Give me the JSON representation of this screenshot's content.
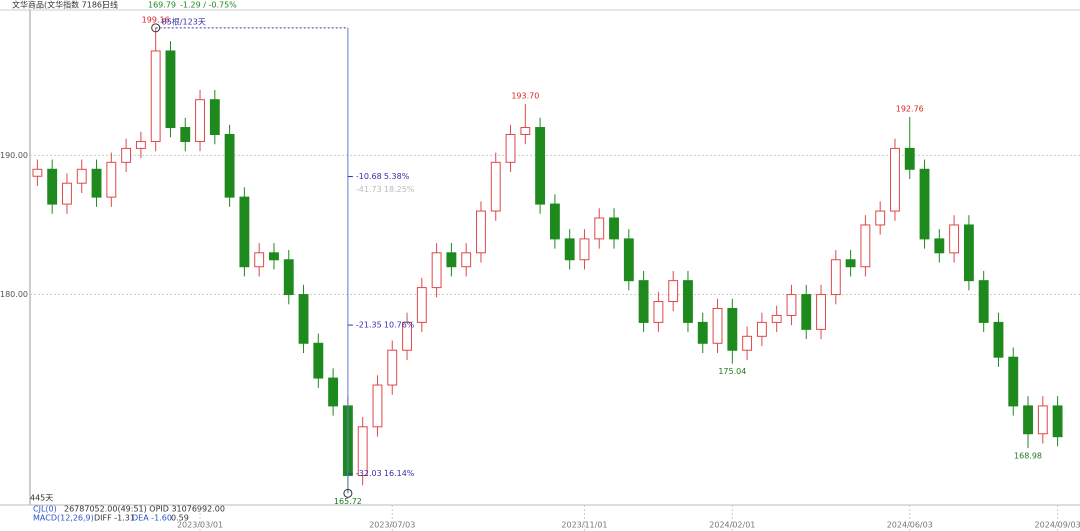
{
  "chart_data": {
    "type": "candlestick",
    "title": "文华商品(文华指数 7186)",
    "period": "日线",
    "last": 169.79,
    "change": "-1.29 / -0.75%",
    "up_color": "#e04848",
    "down_color": "#1e8a1e",
    "ylim": [
      165.6,
      200.3
    ],
    "yticks": [
      {
        "value": 180,
        "label": "180.00"
      },
      {
        "value": 190,
        "label": "190.00"
      }
    ],
    "grid": true,
    "xticks": [
      {
        "value": 11,
        "label": "2023/03/01"
      },
      {
        "value": 24,
        "label": "2023/07/03"
      },
      {
        "value": 37,
        "label": "2023/11/01"
      },
      {
        "value": 47,
        "label": "2024/02/01"
      },
      {
        "value": 59,
        "label": "2024/06/03"
      },
      {
        "value": 69,
        "label": "2024/09/03"
      }
    ],
    "candles": [
      [
        188.5,
        189.7,
        187.8,
        189
      ],
      [
        189,
        189.7,
        185.8,
        186.5
      ],
      [
        186.5,
        188.7,
        185.8,
        188
      ],
      [
        188,
        189.7,
        187.3,
        189
      ],
      [
        189,
        189.7,
        186.3,
        187
      ],
      [
        187,
        190.2,
        186.3,
        189.5
      ],
      [
        189.5,
        191.2,
        188.8,
        190.5
      ],
      [
        190.5,
        191.7,
        189.8,
        191
      ],
      [
        191,
        199.16,
        190.3,
        197.5
      ],
      [
        197.5,
        198.2,
        191.3,
        192
      ],
      [
        192,
        192.7,
        190.3,
        191
      ],
      [
        191,
        194.7,
        190.3,
        194
      ],
      [
        194,
        194.7,
        190.8,
        191.5
      ],
      [
        191.5,
        192.2,
        186.3,
        187
      ],
      [
        187,
        187.7,
        181.3,
        182
      ],
      [
        182,
        183.7,
        181.3,
        183
      ],
      [
        183,
        183.7,
        181.8,
        182.5
      ],
      [
        182.5,
        183.2,
        179.3,
        180
      ],
      [
        180,
        180.7,
        175.8,
        176.5
      ],
      [
        176.5,
        177.2,
        173.3,
        174
      ],
      [
        174,
        174.7,
        171.3,
        172
      ],
      [
        172,
        172.7,
        165.72,
        167
      ],
      [
        167,
        171.2,
        166.3,
        170.5
      ],
      [
        170.5,
        174.2,
        169.8,
        173.5
      ],
      [
        173.5,
        176.7,
        172.8,
        176
      ],
      [
        176,
        178.7,
        175.3,
        178
      ],
      [
        178,
        181.2,
        177.3,
        180.5
      ],
      [
        180.5,
        183.7,
        179.8,
        183
      ],
      [
        183,
        183.7,
        181.3,
        182
      ],
      [
        182,
        183.7,
        181.3,
        183
      ],
      [
        183,
        186.7,
        182.3,
        186
      ],
      [
        186,
        190.2,
        185.3,
        189.5
      ],
      [
        189.5,
        192.2,
        188.8,
        191.5
      ],
      [
        191.5,
        193.7,
        190.8,
        192
      ],
      [
        192,
        192.7,
        185.8,
        186.5
      ],
      [
        186.5,
        187.2,
        183.3,
        184
      ],
      [
        184,
        184.7,
        181.8,
        182.5
      ],
      [
        182.5,
        184.7,
        181.8,
        184
      ],
      [
        184,
        186.2,
        183.3,
        185.5
      ],
      [
        185.5,
        186.2,
        183.3,
        184
      ],
      [
        184,
        184.7,
        180.3,
        181
      ],
      [
        181,
        181.7,
        177.3,
        178
      ],
      [
        178,
        180.2,
        177.3,
        179.5
      ],
      [
        179.5,
        181.7,
        178.8,
        181
      ],
      [
        181,
        181.7,
        177.3,
        178
      ],
      [
        178,
        178.7,
        175.8,
        176.5
      ],
      [
        176.5,
        179.7,
        175.8,
        179
      ],
      [
        179,
        179.7,
        175.04,
        176
      ],
      [
        176,
        177.7,
        175.3,
        177
      ],
      [
        177,
        178.7,
        176.3,
        178
      ],
      [
        178,
        179.2,
        177.3,
        178.5
      ],
      [
        178.5,
        180.7,
        177.8,
        180
      ],
      [
        180,
        180.7,
        176.8,
        177.5
      ],
      [
        177.5,
        180.7,
        176.8,
        180
      ],
      [
        180,
        183.2,
        179.3,
        182.5
      ],
      [
        182.5,
        183.2,
        181.3,
        182
      ],
      [
        182,
        185.7,
        181.3,
        185
      ],
      [
        185,
        186.7,
        184.3,
        186
      ],
      [
        186,
        191.2,
        185.3,
        190.5
      ],
      [
        190.5,
        192.76,
        188.3,
        189
      ],
      [
        189,
        189.7,
        183.3,
        184
      ],
      [
        184,
        184.7,
        182.3,
        183
      ],
      [
        183,
        185.7,
        182.3,
        185
      ],
      [
        185,
        185.7,
        180.3,
        181
      ],
      [
        181,
        181.7,
        177.3,
        178
      ],
      [
        178,
        178.7,
        174.8,
        175.5
      ],
      [
        175.5,
        176.2,
        171.3,
        172
      ],
      [
        172,
        172.7,
        168.98,
        170
      ],
      [
        170,
        172.7,
        169.3,
        172
      ],
      [
        172,
        172.7,
        169.1,
        169.79
      ]
    ],
    "value_labels": [
      null,
      null,
      null,
      null,
      null,
      null,
      null,
      null,
      "199.16",
      null,
      null,
      null,
      null,
      null,
      null,
      null,
      null,
      null,
      null,
      null,
      null,
      "165.72",
      null,
      null,
      null,
      null,
      null,
      null,
      null,
      null,
      null,
      null,
      null,
      "193.70",
      null,
      null,
      null,
      null,
      null,
      null,
      null,
      null,
      null,
      null,
      null,
      null,
      null,
      "175.04",
      null,
      null,
      null,
      null,
      null,
      null,
      null,
      null,
      null,
      null,
      null,
      "192.76",
      null,
      null,
      null,
      null,
      null,
      null,
      null,
      "168.98",
      null,
      null
    ],
    "measure": {
      "span": "85根/123天",
      "levels": [
        {
          "value": -10.68,
          "pct": "5.38%"
        },
        {
          "value": -21.35,
          "pct": "10.76%"
        },
        {
          "value": -32.03,
          "pct": "16.14%"
        }
      ],
      "faint": {
        "value": -41.73,
        "pct": "18.25%"
      }
    },
    "days": "445天",
    "volume_name": "CJL(0)",
    "volume_text": "26787052.00(49:51)  OPID 31076992.00",
    "macd_name": "MACD(12,26,9)",
    "diff": "DIFF -1.31",
    "dea": "DEA -1.60",
    "macd": 0.59
  }
}
